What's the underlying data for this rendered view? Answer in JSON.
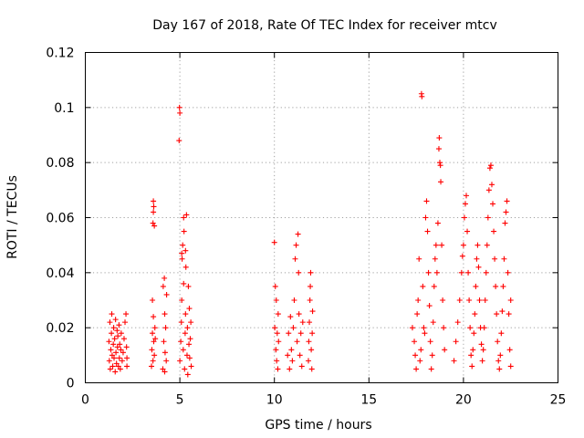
{
  "chart_data": {
    "type": "scatter",
    "title": "Day 167 of 2018, Rate Of TEC Index for receiver mtcv",
    "xlabel": "GPS time / hours",
    "ylabel": "ROTI / TECUs",
    "xlim": [
      0,
      25
    ],
    "ylim": [
      0,
      0.12
    ],
    "xticks": [
      0,
      5,
      10,
      15,
      20,
      25
    ],
    "yticks": [
      0,
      0.02,
      0.04,
      0.06,
      0.08,
      0.1,
      0.12
    ],
    "xtick_labels": [
      "0",
      "5",
      "10",
      "15",
      "20",
      "25"
    ],
    "ytick_labels": [
      "0",
      "0.02",
      "0.04",
      "0.06",
      "0.08",
      "0.1",
      "0.12"
    ],
    "grid": true,
    "marker": "+",
    "marker_color": "#ff0000",
    "series": [
      {
        "name": "ROTI",
        "points": [
          [
            1.25,
            0.015
          ],
          [
            1.27,
            0.008
          ],
          [
            1.3,
            0.022
          ],
          [
            1.32,
            0.005
          ],
          [
            1.35,
            0.012
          ],
          [
            1.38,
            0.018
          ],
          [
            1.4,
            0.025
          ],
          [
            1.42,
            0.01
          ],
          [
            1.45,
            0.006
          ],
          [
            1.48,
            0.014
          ],
          [
            1.5,
            0.02
          ],
          [
            1.52,
            0.009
          ],
          [
            1.55,
            0.016
          ],
          [
            1.58,
            0.004
          ],
          [
            1.6,
            0.023
          ],
          [
            1.62,
            0.011
          ],
          [
            1.65,
            0.007
          ],
          [
            1.68,
            0.019
          ],
          [
            1.7,
            0.013
          ],
          [
            1.72,
            0.017
          ],
          [
            1.75,
            0.006
          ],
          [
            1.78,
            0.021
          ],
          [
            1.8,
            0.009
          ],
          [
            1.82,
            0.014
          ],
          [
            1.85,
            0.005
          ],
          [
            1.88,
            0.012
          ],
          [
            1.9,
            0.018
          ],
          [
            1.95,
            0.008
          ],
          [
            2.0,
            0.011
          ],
          [
            2.05,
            0.016
          ],
          [
            2.1,
            0.022
          ],
          [
            2.15,
            0.025
          ],
          [
            2.2,
            0.009
          ],
          [
            2.2,
            0.006
          ],
          [
            2.18,
            0.013
          ],
          [
            3.5,
            0.006
          ],
          [
            3.52,
            0.012
          ],
          [
            3.55,
            0.018
          ],
          [
            3.58,
            0.008
          ],
          [
            3.6,
            0.024
          ],
          [
            3.62,
            0.015
          ],
          [
            3.65,
            0.01
          ],
          [
            3.68,
            0.02
          ],
          [
            3.55,
            0.03
          ],
          [
            3.6,
            0.066
          ],
          [
            3.62,
            0.064
          ],
          [
            3.58,
            0.058
          ],
          [
            3.65,
            0.057
          ],
          [
            3.6,
            0.062
          ],
          [
            3.7,
            0.016
          ],
          [
            4.1,
            0.005
          ],
          [
            4.15,
            0.015
          ],
          [
            4.2,
            0.025
          ],
          [
            4.12,
            0.035
          ],
          [
            4.18,
            0.038
          ],
          [
            4.22,
            0.011
          ],
          [
            4.25,
            0.02
          ],
          [
            4.28,
            0.008
          ],
          [
            4.3,
            0.032
          ],
          [
            4.2,
            0.004
          ],
          [
            4.98,
            0.1
          ],
          [
            5.0,
            0.098
          ],
          [
            4.96,
            0.088
          ],
          [
            5.0,
            0.008
          ],
          [
            5.05,
            0.015
          ],
          [
            5.08,
            0.022
          ],
          [
            5.1,
            0.03
          ],
          [
            5.12,
            0.045
          ],
          [
            5.15,
            0.05
          ],
          [
            5.18,
            0.012
          ],
          [
            5.2,
            0.06
          ],
          [
            5.22,
            0.055
          ],
          [
            5.25,
            0.005
          ],
          [
            5.28,
            0.018
          ],
          [
            5.3,
            0.025
          ],
          [
            5.32,
            0.042
          ],
          [
            5.35,
            0.061
          ],
          [
            5.38,
            0.01
          ],
          [
            5.4,
            0.02
          ],
          [
            5.42,
            0.003
          ],
          [
            5.45,
            0.035
          ],
          [
            5.48,
            0.014
          ],
          [
            5.5,
            0.027
          ],
          [
            5.52,
            0.009
          ],
          [
            5.55,
            0.016
          ],
          [
            5.58,
            0.022
          ],
          [
            5.6,
            0.006
          ],
          [
            5.1,
            0.047
          ],
          [
            5.3,
            0.048
          ],
          [
            5.2,
            0.036
          ],
          [
            10.0,
            0.051
          ],
          [
            10.05,
            0.035
          ],
          [
            10.1,
            0.03
          ],
          [
            10.02,
            0.02
          ],
          [
            10.08,
            0.012
          ],
          [
            10.12,
            0.008
          ],
          [
            10.15,
            0.018
          ],
          [
            10.2,
            0.025
          ],
          [
            10.18,
            0.005
          ],
          [
            10.22,
            0.015
          ],
          [
            10.7,
            0.01
          ],
          [
            10.75,
            0.018
          ],
          [
            10.8,
            0.005
          ],
          [
            10.85,
            0.024
          ],
          [
            10.9,
            0.012
          ],
          [
            10.95,
            0.008
          ],
          [
            11.0,
            0.02
          ],
          [
            11.05,
            0.03
          ],
          [
            11.1,
            0.045
          ],
          [
            11.15,
            0.05
          ],
          [
            11.2,
            0.015
          ],
          [
            11.25,
            0.054
          ],
          [
            11.28,
            0.04
          ],
          [
            11.3,
            0.025
          ],
          [
            11.35,
            0.01
          ],
          [
            11.4,
            0.018
          ],
          [
            11.45,
            0.006
          ],
          [
            11.5,
            0.022
          ],
          [
            11.8,
            0.008
          ],
          [
            11.82,
            0.015
          ],
          [
            11.85,
            0.022
          ],
          [
            11.88,
            0.03
          ],
          [
            11.9,
            0.035
          ],
          [
            11.92,
            0.04
          ],
          [
            11.95,
            0.012
          ],
          [
            11.98,
            0.005
          ],
          [
            12.0,
            0.018
          ],
          [
            12.02,
            0.026
          ],
          [
            17.3,
            0.02
          ],
          [
            17.4,
            0.015
          ],
          [
            17.45,
            0.01
          ],
          [
            17.5,
            0.005
          ],
          [
            17.55,
            0.025
          ],
          [
            17.6,
            0.03
          ],
          [
            17.65,
            0.045
          ],
          [
            17.7,
            0.008
          ],
          [
            17.75,
            0.012
          ],
          [
            17.78,
            0.105
          ],
          [
            17.8,
            0.104
          ],
          [
            17.85,
            0.035
          ],
          [
            17.9,
            0.02
          ],
          [
            17.95,
            0.018
          ],
          [
            18.0,
            0.06
          ],
          [
            18.05,
            0.066
          ],
          [
            18.1,
            0.055
          ],
          [
            18.15,
            0.04
          ],
          [
            18.2,
            0.028
          ],
          [
            18.25,
            0.015
          ],
          [
            18.3,
            0.005
          ],
          [
            18.35,
            0.01
          ],
          [
            18.4,
            0.022
          ],
          [
            18.45,
            0.035
          ],
          [
            18.5,
            0.045
          ],
          [
            18.55,
            0.05
          ],
          [
            18.6,
            0.04
          ],
          [
            18.65,
            0.058
          ],
          [
            18.7,
            0.085
          ],
          [
            18.72,
            0.089
          ],
          [
            18.75,
            0.08
          ],
          [
            18.78,
            0.079
          ],
          [
            18.8,
            0.073
          ],
          [
            18.85,
            0.05
          ],
          [
            18.9,
            0.03
          ],
          [
            18.95,
            0.02
          ],
          [
            19.0,
            0.012
          ],
          [
            19.5,
            0.008
          ],
          [
            19.6,
            0.015
          ],
          [
            19.7,
            0.022
          ],
          [
            19.8,
            0.03
          ],
          [
            19.9,
            0.04
          ],
          [
            19.95,
            0.046
          ],
          [
            20.0,
            0.05
          ],
          [
            20.05,
            0.06
          ],
          [
            20.1,
            0.065
          ],
          [
            20.15,
            0.068
          ],
          [
            20.2,
            0.055
          ],
          [
            20.25,
            0.04
          ],
          [
            20.3,
            0.03
          ],
          [
            20.35,
            0.02
          ],
          [
            20.4,
            0.01
          ],
          [
            20.45,
            0.006
          ],
          [
            20.5,
            0.012
          ],
          [
            20.55,
            0.018
          ],
          [
            20.6,
            0.025
          ],
          [
            20.65,
            0.035
          ],
          [
            20.7,
            0.045
          ],
          [
            20.75,
            0.05
          ],
          [
            20.8,
            0.042
          ],
          [
            20.85,
            0.03
          ],
          [
            20.9,
            0.02
          ],
          [
            20.95,
            0.014
          ],
          [
            21.0,
            0.008
          ],
          [
            21.05,
            0.012
          ],
          [
            21.1,
            0.02
          ],
          [
            21.15,
            0.03
          ],
          [
            21.2,
            0.04
          ],
          [
            21.25,
            0.05
          ],
          [
            21.3,
            0.06
          ],
          [
            21.35,
            0.07
          ],
          [
            21.4,
            0.078
          ],
          [
            21.45,
            0.079
          ],
          [
            21.5,
            0.072
          ],
          [
            21.55,
            0.065
          ],
          [
            21.6,
            0.055
          ],
          [
            21.65,
            0.045
          ],
          [
            21.7,
            0.035
          ],
          [
            21.75,
            0.025
          ],
          [
            21.8,
            0.015
          ],
          [
            21.85,
            0.008
          ],
          [
            21.9,
            0.005
          ],
          [
            21.95,
            0.01
          ],
          [
            22.0,
            0.018
          ],
          [
            22.05,
            0.026
          ],
          [
            22.1,
            0.035
          ],
          [
            22.15,
            0.045
          ],
          [
            22.2,
            0.058
          ],
          [
            22.25,
            0.062
          ],
          [
            22.3,
            0.066
          ],
          [
            22.35,
            0.04
          ],
          [
            22.4,
            0.025
          ],
          [
            22.45,
            0.012
          ],
          [
            22.5,
            0.006
          ],
          [
            22.5,
            0.03
          ]
        ]
      }
    ]
  }
}
